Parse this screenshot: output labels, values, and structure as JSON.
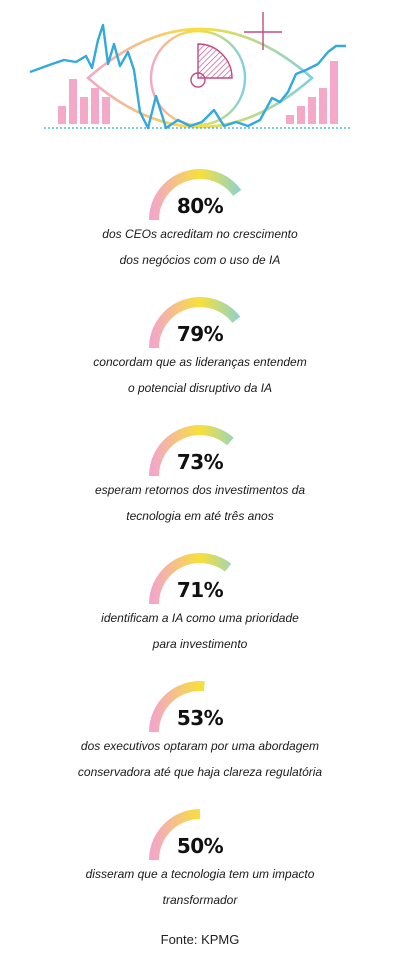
{
  "chart_data": {
    "type": "gauge",
    "max": 100,
    "colors": {
      "start": "#f3a7c6",
      "mid": "#f7e03b",
      "end": "#7ed0e3",
      "track": "#ffffff"
    },
    "items": [
      {
        "value": 80,
        "label": "80%",
        "line1": "dos CEOs acreditam no crescimento",
        "line2": "dos negócios com o uso de IA"
      },
      {
        "value": 79,
        "label": "79%",
        "line1": "concordam que as lideranças entendem",
        "line2": "o potencial disruptivo da IA"
      },
      {
        "value": 73,
        "label": "73%",
        "line1": "esperam retornos dos investimentos da",
        "line2": "tecnologia em até três anos"
      },
      {
        "value": 71,
        "label": "71%",
        "line1": "identificam a IA como uma prioridade",
        "line2": "para investimento"
      },
      {
        "value": 53,
        "label": "53%",
        "line1": "dos executivos optaram por uma abordagem",
        "line2": "conservadora até que haja clareza regulatória"
      },
      {
        "value": 50,
        "label": "50%",
        "line1": "disseram que a tecnologia tem um impacto",
        "line2": "transformador"
      }
    ]
  },
  "hero": {
    "line_color": "#33a9dc",
    "bar_color": "#f4a9c9",
    "bars": [
      2,
      5,
      3,
      4,
      3,
      2,
      1,
      2,
      3,
      4,
      7
    ]
  },
  "source": "Fonte: KPMG"
}
